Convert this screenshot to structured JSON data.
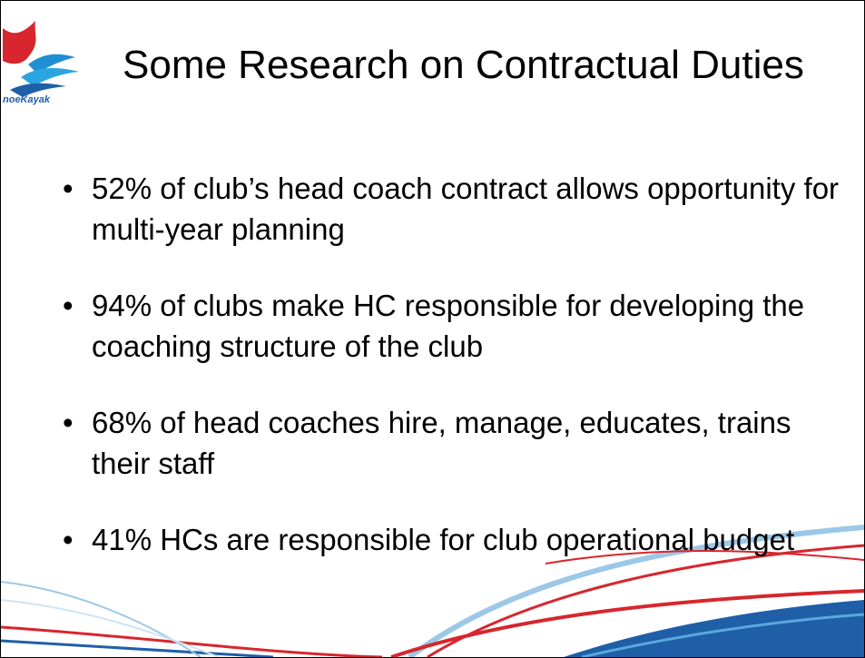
{
  "logo": {
    "text": "noeKayak"
  },
  "title": "Some Research on Contractual Duties",
  "bullets": [
    "52% of club’s head coach contract allows opportunity for multi-year planning",
    "94% of clubs make HC responsible for developing the coaching structure of the club",
    "68% of head coaches hire, manage, educates, trains their staff",
    "41% HCs are responsible for club operational budget"
  ]
}
